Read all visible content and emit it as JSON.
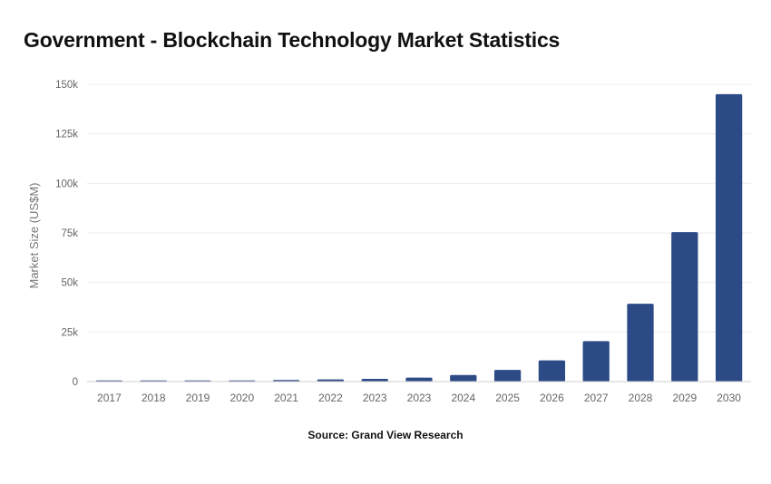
{
  "page": {
    "title": "Government - Blockchain Technology Market Statistics",
    "source": "Source: Grand View Research"
  },
  "colors": {
    "bar": "#2b4a86",
    "grid": "#ececec",
    "tick_text": "#666666",
    "axis_label": "#777777"
  },
  "chart_data": {
    "type": "bar",
    "title": "Government - Blockchain Technology Market Statistics",
    "xlabel": "",
    "ylabel": "Market Size (US$M)",
    "categories": [
      "2017",
      "2018",
      "2019",
      "2020",
      "2021",
      "2022",
      "2023",
      "2023",
      "2024",
      "2025",
      "2026",
      "2027",
      "2028",
      "2029",
      "2030"
    ],
    "values": [
      150,
      200,
      400,
      600,
      800,
      1100,
      1400,
      2000,
      3300,
      5900,
      10700,
      20400,
      39300,
      75400,
      145000
    ],
    "ylim": [
      0,
      150000
    ],
    "yticks": [
      0,
      25000,
      50000,
      75000,
      100000,
      125000,
      150000
    ],
    "ytick_labels": [
      "0",
      "25k",
      "50k",
      "75k",
      "100k",
      "125k",
      "150k"
    ],
    "grid": true,
    "legend": "none"
  }
}
